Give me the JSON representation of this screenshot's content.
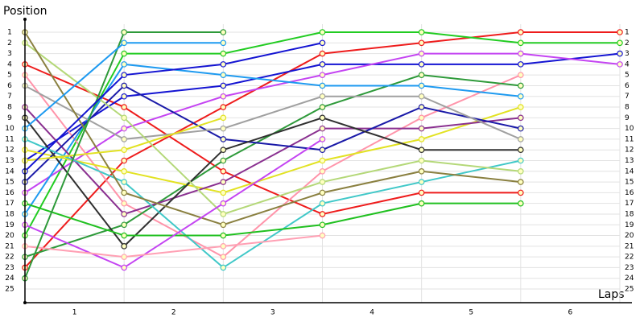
{
  "chart_data": {
    "type": "line",
    "y_title": "Position",
    "x_title": "Laps",
    "x": [
      0,
      1,
      2,
      3,
      4,
      5,
      6
    ],
    "xlim": [
      0,
      6.1
    ],
    "xticks": [
      {
        "value": 0.5,
        "label": "1"
      },
      {
        "value": 1.5,
        "label": "2"
      },
      {
        "value": 2.5,
        "label": "3"
      },
      {
        "value": 3.5,
        "label": "4"
      },
      {
        "value": 4.5,
        "label": "5"
      },
      {
        "value": 5.5,
        "label": "6"
      }
    ],
    "ylim": [
      0,
      26
    ],
    "y_inverted": true,
    "yticks": [
      1,
      2,
      3,
      4,
      5,
      6,
      7,
      8,
      9,
      10,
      11,
      12,
      13,
      14,
      15,
      16,
      17,
      18,
      19,
      20,
      21,
      22,
      23,
      24,
      25
    ],
    "grid": true,
    "series": [
      {
        "color": "#ee1c1c",
        "values": [
          23,
          13,
          8,
          3,
          2,
          1,
          1
        ]
      },
      {
        "color": "#ee1c1c",
        "values": [
          4,
          8,
          14,
          18,
          16,
          16,
          null
        ]
      },
      {
        "color": "#22cc22",
        "values": [
          20,
          3,
          3,
          1,
          1,
          2,
          2
        ]
      },
      {
        "color": "#1414d2",
        "values": [
          13,
          7,
          6,
          4,
          4,
          4,
          3
        ]
      },
      {
        "color": "#c444f2",
        "values": [
          16,
          10,
          7,
          5,
          3,
          3,
          4
        ]
      },
      {
        "color": "#ff94aa",
        "values": [
          5,
          17,
          22,
          14,
          9,
          5,
          null
        ]
      },
      {
        "color": "#2e9a3a",
        "values": [
          22,
          19,
          13,
          8,
          5,
          6,
          null
        ]
      },
      {
        "color": "#1e9af0",
        "values": [
          18,
          4,
          5,
          6,
          6,
          7,
          null
        ]
      },
      {
        "color": "#e2e222",
        "values": [
          12,
          14,
          16,
          13,
          11,
          8,
          null
        ]
      },
      {
        "color": "#8a3090",
        "values": [
          8,
          18,
          15,
          10,
          10,
          9,
          null
        ]
      },
      {
        "color": "#1a1aa8",
        "values": [
          15,
          6,
          11,
          12,
          8,
          10,
          null
        ]
      },
      {
        "color": "#a0a0a0",
        "values": [
          6,
          11,
          10,
          7,
          7,
          11,
          null
        ]
      },
      {
        "color": "#303030",
        "values": [
          9,
          21,
          12,
          9,
          12,
          12,
          null
        ]
      },
      {
        "color": "#40c8c8",
        "values": [
          11,
          15,
          23,
          17,
          15,
          13,
          null
        ]
      },
      {
        "color": "#b4d878",
        "values": [
          2,
          9,
          18,
          15,
          13,
          14,
          null
        ]
      },
      {
        "color": "#8a8040",
        "values": [
          1,
          16,
          19,
          16,
          14,
          15,
          null
        ]
      },
      {
        "color": "#20c020",
        "values": [
          17,
          20,
          20,
          19,
          17,
          17,
          null
        ]
      },
      {
        "color": "#c444f2",
        "values": [
          19,
          23,
          17,
          11,
          null,
          null,
          null
        ]
      },
      {
        "color": "#ffa0b4",
        "values": [
          21,
          22,
          21,
          20,
          null,
          null,
          null
        ]
      },
      {
        "color": "#e2e222",
        "values": [
          13,
          12,
          9,
          null,
          null,
          null,
          null
        ]
      },
      {
        "color": "#2e9a3a",
        "values": [
          24,
          1,
          1,
          null,
          null,
          null,
          null
        ]
      },
      {
        "color": "#1e9af0",
        "values": [
          10,
          2,
          2,
          null,
          null,
          null,
          null
        ]
      },
      {
        "color": "#1414d2",
        "values": [
          14,
          5,
          4,
          2,
          null,
          null,
          null
        ]
      }
    ]
  }
}
